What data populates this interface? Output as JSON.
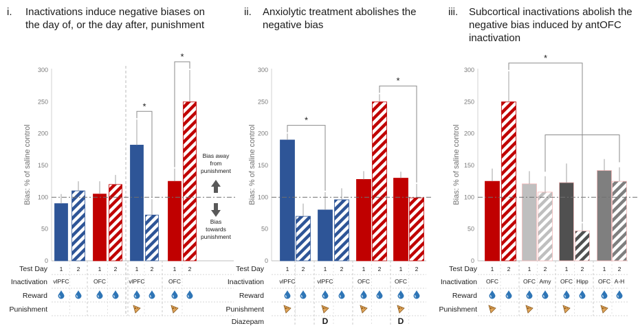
{
  "colors": {
    "blue": "#2e5597",
    "red": "#c00000",
    "pink": "#f4b8b8",
    "lightgray": "#bfbfbf",
    "darkgray": "#505050",
    "gray": "#7f7f7f",
    "drop": "#2e75b6",
    "cheese": "#e0a458"
  },
  "icons": {
    "reward": "water-drop-icon",
    "punishment": "cheese-wedge-icon"
  },
  "chart_data": [
    {
      "type": "bar",
      "title": "i.    Inactivations induce negative biases on the day of, or the day after, punishment",
      "ylabel": "Bias: % of saline control",
      "ylim": [
        0,
        300
      ],
      "yticks": [
        "0",
        "50",
        "100",
        "150",
        "200",
        "250",
        "300"
      ],
      "reference_line": 100,
      "values": [
        90,
        110,
        105,
        120,
        182,
        72,
        125,
        250
      ],
      "errors": [
        15,
        15,
        20,
        15,
        40,
        25,
        20,
        50
      ],
      "colors": [
        "blue",
        "blue",
        "red",
        "red",
        "blue",
        "blue",
        "red",
        "red"
      ],
      "hatched": [
        false,
        true,
        false,
        true,
        false,
        true,
        false,
        true
      ],
      "table": {
        "row_labels": [
          "Test Day",
          "Inactivation",
          "Reward",
          "Punishment"
        ],
        "test_day": [
          "1",
          "2",
          "1",
          "2",
          "1",
          "2",
          "1",
          "2"
        ],
        "inactivation": [
          "vlPFC",
          "",
          "OFC",
          "",
          "vlPFC",
          "",
          "OFC",
          ""
        ],
        "reward": [
          true,
          true,
          true,
          true,
          true,
          true,
          true,
          true
        ],
        "punishment": [
          false,
          false,
          false,
          false,
          true,
          false,
          true,
          false
        ]
      },
      "significance": [
        {
          "bars": [
            4,
            5
          ],
          "label": "*"
        },
        {
          "bars": [
            6,
            7
          ],
          "label": "*"
        }
      ],
      "annotations": {
        "up": [
          "Bias away",
          "from",
          "punishment"
        ],
        "down": [
          "Bias",
          "towards",
          "punishment"
        ]
      }
    },
    {
      "type": "bar",
      "title": "ii.    Anxiolytic treatment abolishes the negative bias",
      "ylabel": "Bias: % of saline control",
      "ylim": [
        0,
        300
      ],
      "yticks": [
        "0",
        "50",
        "100",
        "150",
        "200",
        "250",
        "300"
      ],
      "reference_line": 100,
      "values": [
        190,
        70,
        80,
        96,
        128,
        250,
        130,
        99
      ],
      "errors": [
        10,
        20,
        28,
        18,
        13,
        12,
        10,
        22
      ],
      "colors": [
        "blue",
        "blue",
        "blue",
        "blue",
        "red",
        "red",
        "red",
        "red"
      ],
      "hatched": [
        false,
        true,
        false,
        true,
        false,
        true,
        false,
        true
      ],
      "table": {
        "row_labels": [
          "Test Day",
          "Inactivation",
          "Reward",
          "Punishment",
          "Diazepam"
        ],
        "test_day": [
          "1",
          "2",
          "1",
          "2",
          "1",
          "2",
          "1",
          "2"
        ],
        "inactivation": [
          "vlPFC",
          "",
          "vlPFC",
          "",
          "OFC",
          "",
          "OFC",
          ""
        ],
        "reward": [
          true,
          true,
          true,
          true,
          true,
          true,
          true,
          true
        ],
        "punishment": [
          true,
          false,
          true,
          false,
          true,
          false,
          true,
          false
        ],
        "diazepam": [
          "",
          "",
          "D",
          "",
          "",
          "",
          "D",
          ""
        ]
      },
      "significance": [
        {
          "bars": [
            0,
            2
          ],
          "label": "*"
        },
        {
          "bars": [
            5,
            7
          ],
          "label": "*"
        }
      ]
    },
    {
      "type": "bar",
      "title": "iii.    Subcortical inactivations abolish the negative bias induced by antOFC inactivation",
      "ylabel": "Bias: % of saline control",
      "ylim": [
        0,
        300
      ],
      "yticks": [
        "0",
        "50",
        "100",
        "150",
        "200",
        "250",
        "300"
      ],
      "reference_line": 100,
      "values": [
        125,
        250,
        121,
        108,
        123,
        47,
        142,
        125
      ],
      "errors": [
        20,
        48,
        20,
        25,
        30,
        12,
        18,
        22
      ],
      "colors": [
        "red",
        "red",
        "lightgray",
        "lightgray",
        "darkgray",
        "darkgray",
        "gray",
        "gray"
      ],
      "hatched": [
        false,
        true,
        false,
        true,
        false,
        true,
        false,
        true
      ],
      "table": {
        "row_labels": [
          "Test Day",
          "Inactivation",
          "Reward",
          "Punishment"
        ],
        "test_day": [
          "1",
          "2",
          "1",
          "2",
          "1",
          "2",
          "1",
          "2"
        ],
        "inactivation": [
          "OFC",
          "",
          "OFC",
          "Amy",
          "OFC",
          "Hipp",
          "OFC",
          "A-H"
        ],
        "reward": [
          true,
          true,
          true,
          true,
          true,
          true,
          true,
          true
        ],
        "punishment": [
          true,
          false,
          true,
          false,
          true,
          false,
          true,
          false
        ]
      },
      "significance": [
        {
          "bars": [
            1,
            5
          ],
          "label": "*"
        }
      ]
    }
  ]
}
